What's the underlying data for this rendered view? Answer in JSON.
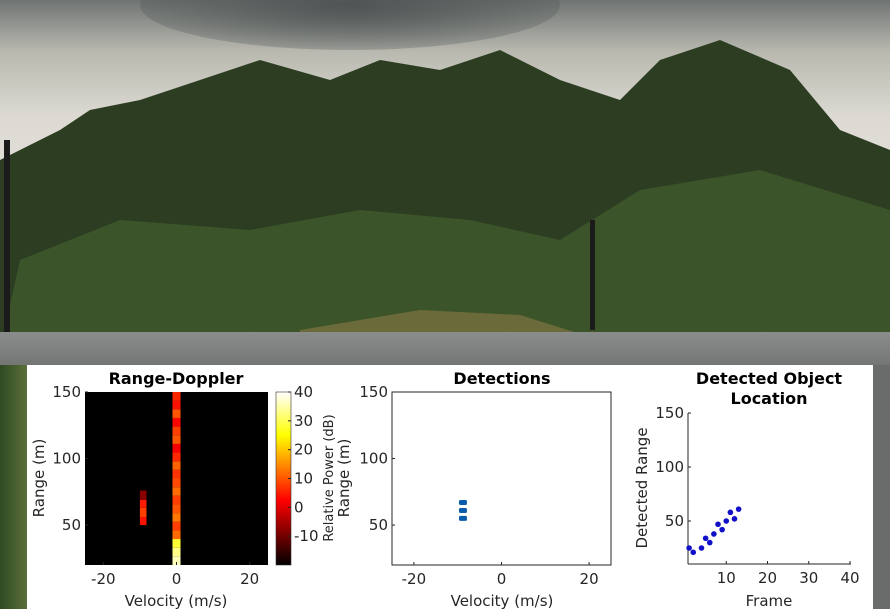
{
  "chart_data": [
    {
      "type": "heatmap",
      "title": "Range-Doppler",
      "xlabel": "Velocity (m/s)",
      "ylabel": "Range (m)",
      "xlim": [
        -25,
        25
      ],
      "ylim": [
        20,
        150
      ],
      "xticks": [
        "-20",
        "0",
        "20"
      ],
      "yticks": [
        "50",
        "100",
        "150"
      ],
      "colormap": "hot",
      "colorbar": {
        "label": "Relative Power (dB)",
        "range": [
          -20,
          40
        ],
        "ticks": [
          "40",
          "30",
          "20",
          "10",
          "0",
          "-10"
        ]
      },
      "overlapping_label": "Range (m)",
      "cells": [
        {
          "velocity": [
            -1.1,
            1.1
          ],
          "range": [
            20,
            26.5
          ],
          "power": 36
        },
        {
          "velocity": [
            -1.1,
            1.1
          ],
          "range": [
            26.5,
            33
          ],
          "power": 33
        },
        {
          "velocity": [
            -1.1,
            1.1
          ],
          "range": [
            33,
            39.5
          ],
          "power": 28
        },
        {
          "velocity": [
            -1.1,
            1.1
          ],
          "range": [
            39.5,
            46
          ],
          "power": 12
        },
        {
          "velocity": [
            -1.1,
            1.1
          ],
          "range": [
            46,
            52.5
          ],
          "power": 8
        },
        {
          "velocity": [
            -1.1,
            1.1
          ],
          "range": [
            52.5,
            59
          ],
          "power": 13
        },
        {
          "velocity": [
            -1.1,
            1.1
          ],
          "range": [
            59,
            65.5
          ],
          "power": 10
        },
        {
          "velocity": [
            -1.1,
            1.1
          ],
          "range": [
            65.5,
            72
          ],
          "power": 8
        },
        {
          "velocity": [
            -1.1,
            1.1
          ],
          "range": [
            72,
            78.5
          ],
          "power": 12
        },
        {
          "velocity": [
            -1.1,
            1.1
          ],
          "range": [
            78.5,
            85
          ],
          "power": 9
        },
        {
          "velocity": [
            -1.1,
            1.1
          ],
          "range": [
            85,
            91.5
          ],
          "power": 7
        },
        {
          "velocity": [
            -1.1,
            1.1
          ],
          "range": [
            91.5,
            98
          ],
          "power": 11
        },
        {
          "velocity": [
            -1.1,
            1.1
          ],
          "range": [
            98,
            104.5
          ],
          "power": 6
        },
        {
          "velocity": [
            -1.1,
            1.1
          ],
          "range": [
            104.5,
            111
          ],
          "power": 2
        },
        {
          "velocity": [
            -1.1,
            1.1
          ],
          "range": [
            111,
            117.5
          ],
          "power": 10
        },
        {
          "velocity": [
            -1.1,
            1.1
          ],
          "range": [
            117.5,
            124
          ],
          "power": 8
        },
        {
          "velocity": [
            -1.1,
            1.1
          ],
          "range": [
            124,
            130.5
          ],
          "power": 3
        },
        {
          "velocity": [
            -1.1,
            1.1
          ],
          "range": [
            130.5,
            137
          ],
          "power": 10
        },
        {
          "velocity": [
            -1.1,
            1.1
          ],
          "range": [
            137,
            143.5
          ],
          "power": 4
        },
        {
          "velocity": [
            -1.1,
            1.1
          ],
          "range": [
            143.5,
            150
          ],
          "power": 6
        },
        {
          "velocity": [
            -10,
            -8.2
          ],
          "range": [
            50,
            56
          ],
          "power": 4
        },
        {
          "velocity": [
            -10,
            -8.2
          ],
          "range": [
            56,
            63
          ],
          "power": 8
        },
        {
          "velocity": [
            -10,
            -8.2
          ],
          "range": [
            63,
            69
          ],
          "power": 5
        },
        {
          "velocity": [
            -10,
            -8.2
          ],
          "range": [
            69,
            76
          ],
          "power": -8
        }
      ]
    },
    {
      "type": "scatter",
      "title": "Detections",
      "xlabel": "Velocity (m/s)",
      "ylabel": "Range (m)",
      "xlim": [
        -25,
        25
      ],
      "ylim": [
        20,
        150
      ],
      "xticks": [
        "-20",
        "0",
        "20"
      ],
      "yticks": [
        "50",
        "100",
        "150"
      ],
      "marker_color": "#0a5cab",
      "points": [
        {
          "x": -8.8,
          "y": 55
        },
        {
          "x": -8.8,
          "y": 61
        },
        {
          "x": -8.8,
          "y": 67
        }
      ]
    },
    {
      "type": "scatter",
      "title": "Detected Object Location",
      "title_lines": [
        "Detected Object",
        "Location"
      ],
      "xlabel": "Frame",
      "ylabel": "Detected Range",
      "xlim": [
        1,
        40
      ],
      "ylim": [
        10,
        150
      ],
      "xticks": [
        "10",
        "20",
        "30",
        "40"
      ],
      "yticks": [
        "50",
        "100",
        "150"
      ],
      "marker_color": "#1010c8",
      "points": [
        {
          "x": 1,
          "y": 25
        },
        {
          "x": 2,
          "y": 21
        },
        {
          "x": 4,
          "y": 25
        },
        {
          "x": 5,
          "y": 34
        },
        {
          "x": 6,
          "y": 30
        },
        {
          "x": 7,
          "y": 38
        },
        {
          "x": 8,
          "y": 47
        },
        {
          "x": 9,
          "y": 42
        },
        {
          "x": 10,
          "y": 50
        },
        {
          "x": 11,
          "y": 58
        },
        {
          "x": 12,
          "y": 52
        },
        {
          "x": 13,
          "y": 61
        }
      ]
    }
  ]
}
